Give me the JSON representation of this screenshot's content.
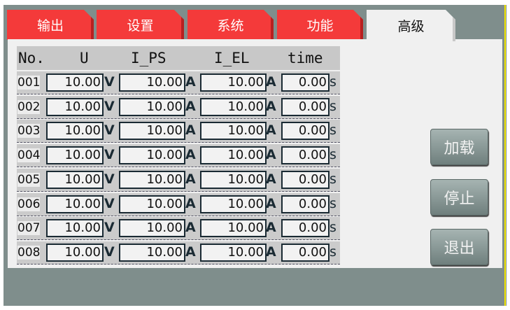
{
  "tabs": [
    {
      "label": "输出"
    },
    {
      "label": "设置"
    },
    {
      "label": "系统"
    },
    {
      "label": "功能"
    },
    {
      "label": "高级",
      "active": true
    }
  ],
  "table": {
    "headers": {
      "no": "No.",
      "u": "U",
      "i_ps": "I_PS",
      "i_el": "I_EL",
      "time": "time"
    },
    "units": {
      "u": "V",
      "i_ps": "A",
      "i_el": "A",
      "time": "s"
    },
    "rows": [
      {
        "no": "001",
        "u": "10.00",
        "i_ps": "10.00",
        "i_el": "10.00",
        "time": "0.00"
      },
      {
        "no": "002",
        "u": "10.00",
        "i_ps": "10.00",
        "i_el": "10.00",
        "time": "0.00"
      },
      {
        "no": "003",
        "u": "10.00",
        "i_ps": "10.00",
        "i_el": "10.00",
        "time": "0.00"
      },
      {
        "no": "004",
        "u": "10.00",
        "i_ps": "10.00",
        "i_el": "10.00",
        "time": "0.00"
      },
      {
        "no": "005",
        "u": "10.00",
        "i_ps": "10.00",
        "i_el": "10.00",
        "time": "0.00"
      },
      {
        "no": "006",
        "u": "10.00",
        "i_ps": "10.00",
        "i_el": "10.00",
        "time": "0.00"
      },
      {
        "no": "007",
        "u": "10.00",
        "i_ps": "10.00",
        "i_el": "10.00",
        "time": "0.00"
      },
      {
        "no": "008",
        "u": "10.00",
        "i_ps": "10.00",
        "i_el": "10.00",
        "time": "0.00"
      }
    ]
  },
  "buttons": {
    "load": "加载",
    "stop": "停止",
    "exit": "退出"
  },
  "colors": {
    "tab_red": "#f43a3a",
    "background": "#7f8e8c",
    "panel": "#f0f0f0"
  }
}
